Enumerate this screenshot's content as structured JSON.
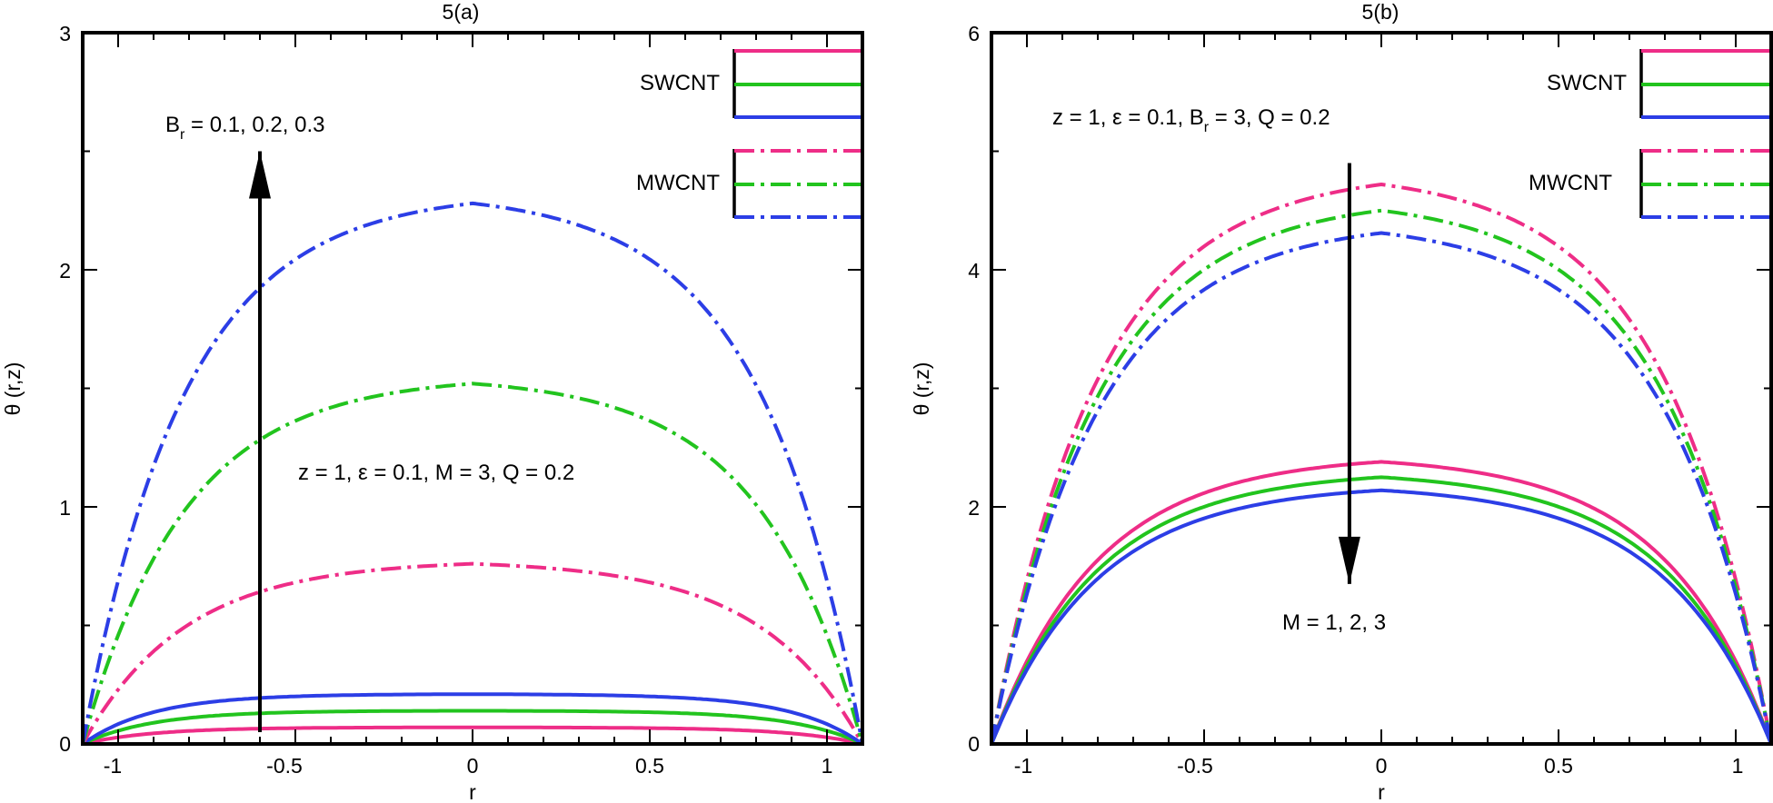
{
  "chart_data": [
    {
      "type": "line",
      "title": "5(a)",
      "xlabel": "r",
      "ylabel": "θ (r,z)",
      "xlim": [
        -1.1,
        1.1
      ],
      "ylim": [
        0,
        3
      ],
      "x_major_ticks": [
        -1,
        -0.5,
        0,
        0.5,
        1
      ],
      "x_tick_labels": [
        "-1",
        "-0.5",
        "0",
        "0.5",
        "1"
      ],
      "y_major_ticks": [
        0,
        1,
        2,
        3
      ],
      "y_tick_labels": [
        "0",
        "1",
        "2",
        "3"
      ],
      "params_label": "z = 1, ε = 0.1, M = 3, Q = 0.2",
      "arrow_label_main": "B",
      "arrow_label_sub": "r",
      "arrow_label_rest": " = 0.1, 0.2, 0.3",
      "arrow": {
        "x": -0.6,
        "from_y": 0.05,
        "to_y": 2.5,
        "direction": "up"
      },
      "legend": [
        {
          "group": "SWCNT",
          "style": "solid",
          "colors": [
            "#ee2d87",
            "#22c41e",
            "#2c3ee6"
          ]
        },
        {
          "group": "MWCNT",
          "style": "dashdot",
          "colors": [
            "#ee2d87",
            "#22c41e",
            "#2c3ee6"
          ]
        }
      ],
      "legend_position": "top-right",
      "series": [
        {
          "name": "SWCNT Br=0.1",
          "style": "solid",
          "color": "#ee2d87",
          "peak": 0.07,
          "sharpness": 0.18
        },
        {
          "name": "SWCNT Br=0.2",
          "style": "solid",
          "color": "#22c41e",
          "peak": 0.14,
          "sharpness": 0.18
        },
        {
          "name": "SWCNT Br=0.3",
          "style": "solid",
          "color": "#2c3ee6",
          "peak": 0.21,
          "sharpness": 0.18
        },
        {
          "name": "MWCNT Br=0.1",
          "style": "dashdot",
          "color": "#ee2d87",
          "peak": 0.76,
          "sharpness": 0.26
        },
        {
          "name": "MWCNT Br=0.2",
          "style": "dashdot",
          "color": "#22c41e",
          "peak": 1.52,
          "sharpness": 0.26
        },
        {
          "name": "MWCNT Br=0.3",
          "style": "dashdot",
          "color": "#2c3ee6",
          "peak": 2.28,
          "sharpness": 0.26
        }
      ]
    },
    {
      "type": "line",
      "title": "5(b)",
      "xlabel": "r",
      "ylabel": "θ (r,z)",
      "xlim": [
        -1.1,
        1.1
      ],
      "ylim": [
        0,
        6
      ],
      "x_major_ticks": [
        -1,
        -0.5,
        0,
        0.5,
        1
      ],
      "x_tick_labels": [
        "-1",
        "-0.5",
        "0",
        "0.5",
        "1"
      ],
      "y_major_ticks": [
        0,
        2,
        4,
        6
      ],
      "y_tick_labels": [
        "0",
        "2",
        "4",
        "6"
      ],
      "params_label_main": "z = 1, ε = 0.1, B",
      "params_label_sub": "r",
      "params_label_rest": " = 3, Q = 0.2",
      "arrow_label": "M = 1, 2, 3",
      "arrow": {
        "x": -0.09,
        "from_y": 4.9,
        "to_y": 1.35,
        "direction": "down"
      },
      "legend": [
        {
          "group": "SWCNT",
          "style": "solid",
          "colors": [
            "#ee2d87",
            "#22c41e",
            "#2c3ee6"
          ]
        },
        {
          "group": "MWCNT",
          "style": "dashdot",
          "colors": [
            "#ee2d87",
            "#22c41e",
            "#2c3ee6"
          ]
        }
      ],
      "legend_position": "top-right",
      "series": [
        {
          "name": "SWCNT M=1",
          "style": "solid",
          "color": "#ee2d87",
          "peak": 2.38,
          "sharpness": 0.27
        },
        {
          "name": "SWCNT M=2",
          "style": "solid",
          "color": "#22c41e",
          "peak": 2.25,
          "sharpness": 0.27
        },
        {
          "name": "SWCNT M=3",
          "style": "solid",
          "color": "#2c3ee6",
          "peak": 2.14,
          "sharpness": 0.27
        },
        {
          "name": "MWCNT M=1",
          "style": "dashdot",
          "color": "#ee2d87",
          "peak": 4.72,
          "sharpness": 0.27
        },
        {
          "name": "MWCNT M=2",
          "style": "dashdot",
          "color": "#22c41e",
          "peak": 4.5,
          "sharpness": 0.27
        },
        {
          "name": "MWCNT M=3",
          "style": "dashdot",
          "color": "#2c3ee6",
          "peak": 4.31,
          "sharpness": 0.27
        }
      ]
    }
  ]
}
